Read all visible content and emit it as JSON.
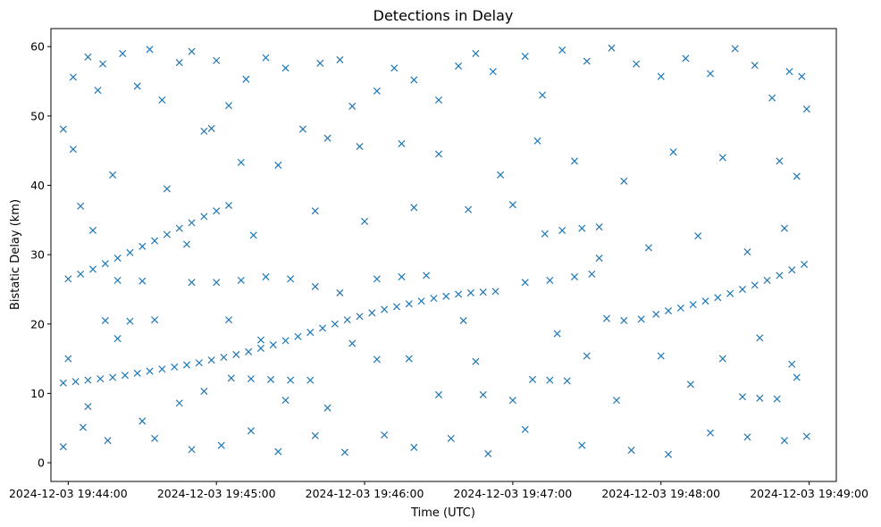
{
  "chart_data": {
    "type": "scatter",
    "title": "Detections in Delay",
    "xlabel": "Time (UTC)",
    "ylabel": "Bistatic Delay (km)",
    "marker": "x",
    "color": "#1f77b4",
    "grid": false,
    "xaxis_type": "datetime",
    "xlim": [
      "2024-12-03 19:43:53",
      "2024-12-03 19:49:11"
    ],
    "ylim": [
      -2.7,
      62.6
    ],
    "x_ticks": [
      "2024-12-03 19:44:00",
      "2024-12-03 19:45:00",
      "2024-12-03 19:46:00",
      "2024-12-03 19:47:00",
      "2024-12-03 19:48:00",
      "2024-12-03 19:49:00"
    ],
    "y_ticks": [
      "0",
      "10",
      "20",
      "30",
      "40",
      "50",
      "60"
    ],
    "series": [
      {
        "points": [
          [
            "2024-12-03 19:43:58",
            11.5
          ],
          [
            "2024-12-03 19:44:03",
            11.7
          ],
          [
            "2024-12-03 19:44:08",
            11.9
          ],
          [
            "2024-12-03 19:44:13",
            12.1
          ],
          [
            "2024-12-03 19:44:18",
            12.3
          ],
          [
            "2024-12-03 19:44:23",
            12.6
          ],
          [
            "2024-12-03 19:44:28",
            12.9
          ],
          [
            "2024-12-03 19:44:33",
            13.2
          ],
          [
            "2024-12-03 19:44:38",
            13.5
          ],
          [
            "2024-12-03 19:44:43",
            13.8
          ],
          [
            "2024-12-03 19:44:48",
            14.1
          ],
          [
            "2024-12-03 19:44:53",
            14.4
          ],
          [
            "2024-12-03 19:44:58",
            14.8
          ],
          [
            "2024-12-03 19:45:03",
            15.2
          ],
          [
            "2024-12-03 19:45:08",
            15.6
          ],
          [
            "2024-12-03 19:45:13",
            16.0
          ],
          [
            "2024-12-03 19:45:18",
            16.5
          ],
          [
            "2024-12-03 19:45:23",
            17.0
          ],
          [
            "2024-12-03 19:45:28",
            17.6
          ],
          [
            "2024-12-03 19:45:33",
            18.2
          ],
          [
            "2024-12-03 19:45:38",
            18.8
          ],
          [
            "2024-12-03 19:45:43",
            19.4
          ],
          [
            "2024-12-03 19:45:48",
            20.0
          ],
          [
            "2024-12-03 19:45:53",
            20.6
          ],
          [
            "2024-12-03 19:45:58",
            21.1
          ],
          [
            "2024-12-03 19:46:03",
            21.6
          ],
          [
            "2024-12-03 19:46:08",
            22.1
          ],
          [
            "2024-12-03 19:46:13",
            22.5
          ],
          [
            "2024-12-03 19:46:18",
            22.9
          ],
          [
            "2024-12-03 19:46:23",
            23.3
          ],
          [
            "2024-12-03 19:46:28",
            23.7
          ],
          [
            "2024-12-03 19:46:33",
            24.0
          ],
          [
            "2024-12-03 19:46:38",
            24.3
          ],
          [
            "2024-12-03 19:46:43",
            24.5
          ],
          [
            "2024-12-03 19:46:48",
            24.6
          ],
          [
            "2024-12-03 19:46:53",
            24.7
          ],
          [
            "2024-12-03 19:44:00",
            26.5
          ],
          [
            "2024-12-03 19:44:05",
            27.2
          ],
          [
            "2024-12-03 19:44:10",
            27.9
          ],
          [
            "2024-12-03 19:44:15",
            28.7
          ],
          [
            "2024-12-03 19:44:20",
            29.5
          ],
          [
            "2024-12-03 19:44:25",
            30.3
          ],
          [
            "2024-12-03 19:44:30",
            31.2
          ],
          [
            "2024-12-03 19:44:35",
            32.0
          ],
          [
            "2024-12-03 19:44:40",
            32.9
          ],
          [
            "2024-12-03 19:44:45",
            33.8
          ],
          [
            "2024-12-03 19:44:50",
            34.6
          ],
          [
            "2024-12-03 19:44:55",
            35.5
          ],
          [
            "2024-12-03 19:45:00",
            36.3
          ],
          [
            "2024-12-03 19:45:05",
            37.1
          ],
          [
            "2024-12-03 19:45:00",
            26.0
          ],
          [
            "2024-12-03 19:45:10",
            26.3
          ],
          [
            "2024-12-03 19:45:20",
            26.8
          ],
          [
            "2024-12-03 19:45:30",
            26.5
          ],
          [
            "2024-12-03 19:45:40",
            25.4
          ],
          [
            "2024-12-03 19:45:50",
            24.5
          ],
          [
            "2024-12-03 19:45:06",
            12.2
          ],
          [
            "2024-12-03 19:45:14",
            12.1
          ],
          [
            "2024-12-03 19:45:22",
            12.0
          ],
          [
            "2024-12-03 19:45:30",
            11.9
          ],
          [
            "2024-12-03 19:45:38",
            11.9
          ],
          [
            "2024-12-03 19:46:05",
            26.5
          ],
          [
            "2024-12-03 19:46:15",
            26.8
          ],
          [
            "2024-12-03 19:46:25",
            27.0
          ],
          [
            "2024-12-03 19:47:05",
            26.0
          ],
          [
            "2024-12-03 19:47:15",
            26.3
          ],
          [
            "2024-12-03 19:47:25",
            26.8
          ],
          [
            "2024-12-03 19:47:32",
            27.2
          ],
          [
            "2024-12-03 19:47:13",
            33.0
          ],
          [
            "2024-12-03 19:47:20",
            33.5
          ],
          [
            "2024-12-03 19:47:28",
            33.8
          ],
          [
            "2024-12-03 19:47:35",
            34.0
          ],
          [
            "2024-12-03 19:47:08",
            12.0
          ],
          [
            "2024-12-03 19:47:15",
            11.9
          ],
          [
            "2024-12-03 19:47:22",
            11.8
          ],
          [
            "2024-12-03 19:47:38",
            20.8
          ],
          [
            "2024-12-03 19:47:45",
            20.5
          ],
          [
            "2024-12-03 19:47:52",
            20.7
          ],
          [
            "2024-12-03 19:47:58",
            21.4
          ],
          [
            "2024-12-03 19:48:03",
            21.9
          ],
          [
            "2024-12-03 19:48:08",
            22.3
          ],
          [
            "2024-12-03 19:48:13",
            22.8
          ],
          [
            "2024-12-03 19:48:18",
            23.3
          ],
          [
            "2024-12-03 19:48:23",
            23.8
          ],
          [
            "2024-12-03 19:48:28",
            24.4
          ],
          [
            "2024-12-03 19:48:33",
            25.0
          ],
          [
            "2024-12-03 19:48:38",
            25.6
          ],
          [
            "2024-12-03 19:48:43",
            26.3
          ],
          [
            "2024-12-03 19:48:48",
            27.0
          ],
          [
            "2024-12-03 19:48:53",
            27.8
          ],
          [
            "2024-12-03 19:48:58",
            28.6
          ],
          [
            "2024-12-03 19:48:33",
            9.5
          ],
          [
            "2024-12-03 19:48:40",
            9.3
          ],
          [
            "2024-12-03 19:48:47",
            9.2
          ],
          [
            "2024-12-03 19:48:55",
            12.3
          ],
          [
            "2024-12-03 19:44:15",
            20.5
          ],
          [
            "2024-12-03 19:44:25",
            20.4
          ],
          [
            "2024-12-03 19:44:35",
            20.6
          ],
          [
            "2024-12-03 19:44:20",
            26.3
          ],
          [
            "2024-12-03 19:44:30",
            26.2
          ],
          [
            "2024-12-03 19:44:50",
            26.0
          ],
          [
            "2024-12-03 19:46:40",
            20.5
          ],
          [
            "2024-12-03 19:46:48",
            9.8
          ],
          [
            "2024-12-03 19:43:58",
            48.1
          ],
          [
            "2024-12-03 19:44:02",
            55.6
          ],
          [
            "2024-12-03 19:44:02",
            45.2
          ],
          [
            "2024-12-03 19:44:08",
            58.5
          ],
          [
            "2024-12-03 19:44:12",
            53.7
          ],
          [
            "2024-12-03 19:44:14",
            57.5
          ],
          [
            "2024-12-03 19:44:22",
            59.0
          ],
          [
            "2024-12-03 19:44:28",
            54.3
          ],
          [
            "2024-12-03 19:44:33",
            59.6
          ],
          [
            "2024-12-03 19:44:38",
            52.3
          ],
          [
            "2024-12-03 19:44:45",
            57.7
          ],
          [
            "2024-12-03 19:44:50",
            59.3
          ],
          [
            "2024-12-03 19:44:55",
            47.8
          ],
          [
            "2024-12-03 19:45:00",
            58.0
          ],
          [
            "2024-12-03 19:45:05",
            51.5
          ],
          [
            "2024-12-03 19:45:12",
            55.3
          ],
          [
            "2024-12-03 19:45:20",
            58.4
          ],
          [
            "2024-12-03 19:45:28",
            56.9
          ],
          [
            "2024-12-03 19:45:35",
            48.1
          ],
          [
            "2024-12-03 19:45:42",
            57.6
          ],
          [
            "2024-12-03 19:45:50",
            58.1
          ],
          [
            "2024-12-03 19:45:55",
            51.4
          ],
          [
            "2024-12-03 19:46:05",
            53.6
          ],
          [
            "2024-12-03 19:46:12",
            56.9
          ],
          [
            "2024-12-03 19:46:20",
            55.2
          ],
          [
            "2024-12-03 19:46:30",
            52.3
          ],
          [
            "2024-12-03 19:46:38",
            57.2
          ],
          [
            "2024-12-03 19:46:45",
            59.0
          ],
          [
            "2024-12-03 19:46:52",
            56.4
          ],
          [
            "2024-12-03 19:47:05",
            58.6
          ],
          [
            "2024-12-03 19:47:12",
            53.0
          ],
          [
            "2024-12-03 19:47:20",
            59.5
          ],
          [
            "2024-12-03 19:47:30",
            57.9
          ],
          [
            "2024-12-03 19:47:40",
            59.8
          ],
          [
            "2024-12-03 19:47:50",
            57.5
          ],
          [
            "2024-12-03 19:48:00",
            55.7
          ],
          [
            "2024-12-03 19:48:10",
            58.3
          ],
          [
            "2024-12-03 19:48:20",
            56.1
          ],
          [
            "2024-12-03 19:48:30",
            59.7
          ],
          [
            "2024-12-03 19:48:38",
            57.3
          ],
          [
            "2024-12-03 19:48:45",
            52.6
          ],
          [
            "2024-12-03 19:48:52",
            56.4
          ],
          [
            "2024-12-03 19:48:57",
            55.7
          ],
          [
            "2024-12-03 19:48:59",
            51.0
          ],
          [
            "2024-12-03 19:44:05",
            37.0
          ],
          [
            "2024-12-03 19:44:18",
            41.5
          ],
          [
            "2024-12-03 19:44:40",
            39.5
          ],
          [
            "2024-12-03 19:44:58",
            48.2
          ],
          [
            "2024-12-03 19:45:10",
            43.3
          ],
          [
            "2024-12-03 19:45:25",
            42.9
          ],
          [
            "2024-12-03 19:45:45",
            46.8
          ],
          [
            "2024-12-03 19:45:58",
            45.6
          ],
          [
            "2024-12-03 19:46:15",
            46.0
          ],
          [
            "2024-12-03 19:46:30",
            44.5
          ],
          [
            "2024-12-03 19:46:55",
            41.5
          ],
          [
            "2024-12-03 19:47:10",
            46.4
          ],
          [
            "2024-12-03 19:47:25",
            43.5
          ],
          [
            "2024-12-03 19:47:45",
            40.6
          ],
          [
            "2024-12-03 19:48:05",
            44.8
          ],
          [
            "2024-12-03 19:48:25",
            44.0
          ],
          [
            "2024-12-03 19:48:48",
            43.5
          ],
          [
            "2024-12-03 19:48:55",
            41.3
          ],
          [
            "2024-12-03 19:44:10",
            33.5
          ],
          [
            "2024-12-03 19:44:48",
            31.5
          ],
          [
            "2024-12-03 19:45:15",
            32.8
          ],
          [
            "2024-12-03 19:45:40",
            36.3
          ],
          [
            "2024-12-03 19:46:00",
            34.8
          ],
          [
            "2024-12-03 19:46:20",
            36.8
          ],
          [
            "2024-12-03 19:46:42",
            36.5
          ],
          [
            "2024-12-03 19:47:00",
            37.2
          ],
          [
            "2024-12-03 19:47:35",
            29.5
          ],
          [
            "2024-12-03 19:47:55",
            31.0
          ],
          [
            "2024-12-03 19:48:15",
            32.7
          ],
          [
            "2024-12-03 19:48:35",
            30.4
          ],
          [
            "2024-12-03 19:48:50",
            33.8
          ],
          [
            "2024-12-03 19:44:00",
            15.0
          ],
          [
            "2024-12-03 19:44:08",
            8.1
          ],
          [
            "2024-12-03 19:44:20",
            17.9
          ],
          [
            "2024-12-03 19:44:30",
            6.0
          ],
          [
            "2024-12-03 19:44:45",
            8.6
          ],
          [
            "2024-12-03 19:44:55",
            10.3
          ],
          [
            "2024-12-03 19:45:05",
            20.6
          ],
          [
            "2024-12-03 19:45:18",
            17.7
          ],
          [
            "2024-12-03 19:45:28",
            9.0
          ],
          [
            "2024-12-03 19:45:45",
            7.9
          ],
          [
            "2024-12-03 19:45:55",
            17.2
          ],
          [
            "2024-12-03 19:46:05",
            14.9
          ],
          [
            "2024-12-03 19:46:18",
            15.0
          ],
          [
            "2024-12-03 19:46:30",
            9.8
          ],
          [
            "2024-12-03 19:46:45",
            14.6
          ],
          [
            "2024-12-03 19:47:00",
            9.0
          ],
          [
            "2024-12-03 19:47:18",
            18.6
          ],
          [
            "2024-12-03 19:47:30",
            15.4
          ],
          [
            "2024-12-03 19:47:42",
            9.0
          ],
          [
            "2024-12-03 19:48:00",
            15.4
          ],
          [
            "2024-12-03 19:48:12",
            11.3
          ],
          [
            "2024-12-03 19:48:25",
            15.0
          ],
          [
            "2024-12-03 19:48:40",
            18.0
          ],
          [
            "2024-12-03 19:48:53",
            14.2
          ],
          [
            "2024-12-03 19:43:58",
            2.3
          ],
          [
            "2024-12-03 19:44:06",
            5.1
          ],
          [
            "2024-12-03 19:44:16",
            3.2
          ],
          [
            "2024-12-03 19:44:35",
            3.5
          ],
          [
            "2024-12-03 19:44:50",
            1.9
          ],
          [
            "2024-12-03 19:45:02",
            2.5
          ],
          [
            "2024-12-03 19:45:14",
            4.6
          ],
          [
            "2024-12-03 19:45:25",
            1.6
          ],
          [
            "2024-12-03 19:45:40",
            3.9
          ],
          [
            "2024-12-03 19:45:52",
            1.5
          ],
          [
            "2024-12-03 19:46:08",
            4.0
          ],
          [
            "2024-12-03 19:46:20",
            2.2
          ],
          [
            "2024-12-03 19:46:35",
            3.5
          ],
          [
            "2024-12-03 19:46:50",
            1.3
          ],
          [
            "2024-12-03 19:47:05",
            4.8
          ],
          [
            "2024-12-03 19:47:28",
            2.5
          ],
          [
            "2024-12-03 19:47:48",
            1.8
          ],
          [
            "2024-12-03 19:48:03",
            1.2
          ],
          [
            "2024-12-03 19:48:20",
            4.3
          ],
          [
            "2024-12-03 19:48:35",
            3.7
          ],
          [
            "2024-12-03 19:48:50",
            3.2
          ],
          [
            "2024-12-03 19:48:59",
            3.8
          ]
        ]
      }
    ]
  }
}
